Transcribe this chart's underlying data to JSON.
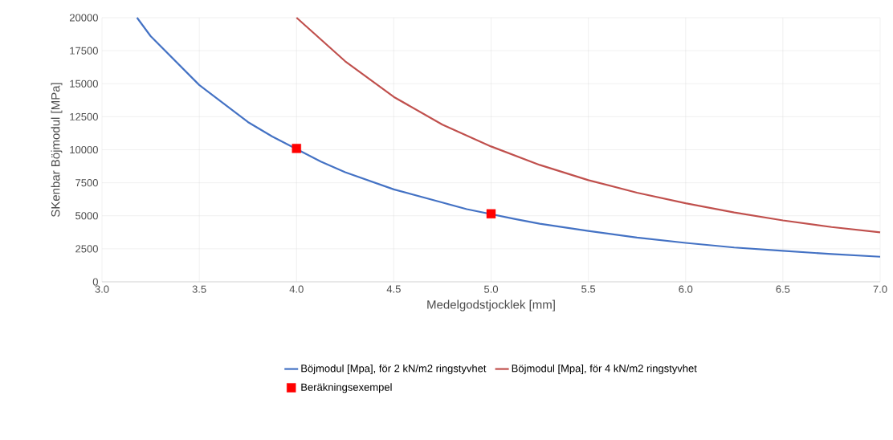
{
  "chart_data": {
    "type": "line",
    "xlabel": "Medelgodstjocklek [mm]",
    "ylabel": "SKenbar Böjmodul [MPa]",
    "xlim": [
      3,
      7
    ],
    "ylim": [
      0,
      20000
    ],
    "xticks": [
      {
        "value": 3,
        "label": "3.0"
      },
      {
        "value": 3.5,
        "label": "3.5"
      },
      {
        "value": 4,
        "label": "4.0"
      },
      {
        "value": 4.5,
        "label": "4.5"
      },
      {
        "value": 5,
        "label": "5.0"
      },
      {
        "value": 5.5,
        "label": "5.5"
      },
      {
        "value": 6,
        "label": "6.0"
      },
      {
        "value": 6.5,
        "label": "6.5"
      },
      {
        "value": 7,
        "label": "7.0"
      }
    ],
    "yticks": [
      0,
      2500,
      5000,
      7500,
      10000,
      12500,
      15000,
      17500,
      20000
    ],
    "grid": true,
    "legend": "bottom",
    "marker": "none",
    "line_style": "solid",
    "series": [
      {
        "name": "Böjmodul [Mpa], för 2 kN/m2 ringstyvhet",
        "color": "#4472c4",
        "x": [
          3.18,
          3.25,
          3.5,
          3.75,
          3.875,
          4.125,
          4.25,
          4.5,
          4.75,
          4.875,
          5.125,
          5.25,
          5.5,
          5.75,
          6.0,
          6.25,
          6.5,
          6.75,
          7.0
        ],
        "values": [
          20000,
          18600,
          14900,
          12100,
          11000,
          9100,
          8300,
          7000,
          6000,
          5500,
          4750,
          4400,
          3850,
          3350,
          2950,
          2600,
          2350,
          2100,
          1900
        ]
      },
      {
        "name": "Böjmodul [Mpa], för 4 kN/m2 ringstyvhet",
        "color": "#c0504d",
        "x": [
          4.0,
          4.25,
          4.5,
          4.75,
          5.0,
          5.25,
          5.5,
          5.75,
          6.0,
          6.25,
          6.5,
          6.75,
          7.0
        ],
        "values": [
          20000,
          16700,
          14000,
          11900,
          10250,
          8850,
          7700,
          6750,
          5950,
          5250,
          4650,
          4150,
          3750
        ]
      },
      {
        "name": "Beräkningsexempel",
        "type": "scatter",
        "marker": "square",
        "color": "#ff0000",
        "x": [
          4.0,
          5.0
        ],
        "values": [
          10100,
          5150
        ]
      }
    ]
  }
}
